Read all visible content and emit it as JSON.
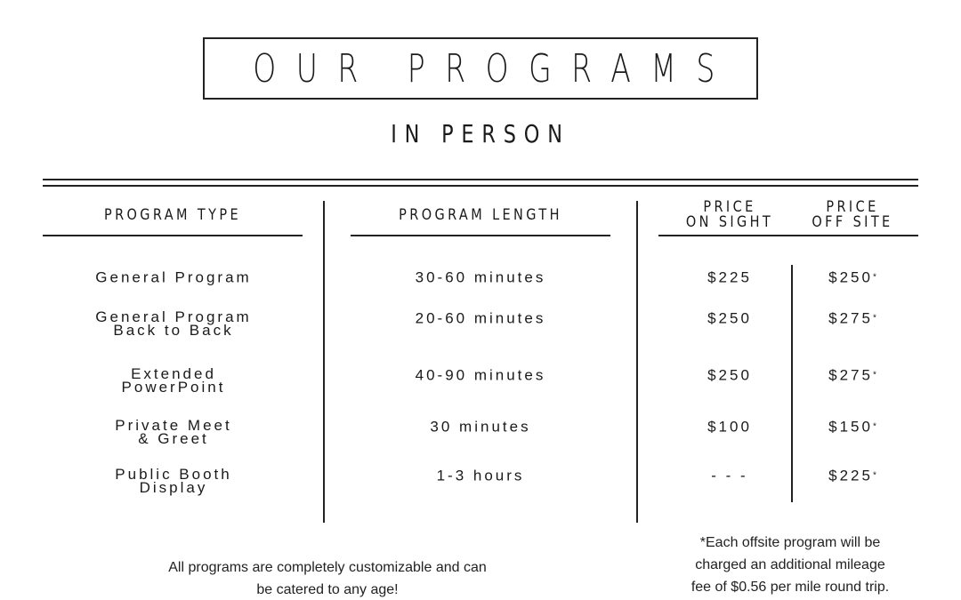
{
  "title": "OUR PROGRAMS",
  "subtitle": "IN PERSON",
  "headers": {
    "type": "PROGRAM TYPE",
    "length": "PROGRAM LENGTH",
    "onsite_1": "PRICE",
    "onsite_2": "ON SIGHT",
    "offsite_1": "PRICE",
    "offsite_2": "OFF SITE"
  },
  "rows": [
    {
      "type": [
        "General Program"
      ],
      "length": "30-60 minutes",
      "onsite": "$225",
      "offsite": "$250",
      "mark": "*"
    },
    {
      "type": [
        "General Program",
        "Back to Back"
      ],
      "length": "20-60 minutes",
      "onsite": "$250",
      "offsite": "$275",
      "mark": "*"
    },
    {
      "type": [
        "Extended",
        "PowerPoint"
      ],
      "length": "40-90 minutes",
      "onsite": "$250",
      "offsite": "$275",
      "mark": "*"
    },
    {
      "type": [
        "Private Meet",
        "& Greet"
      ],
      "length": "30 minutes",
      "onsite": "$100",
      "offsite": "$150",
      "mark": "*"
    },
    {
      "type": [
        "Public Booth",
        "Display"
      ],
      "length": "1-3 hours",
      "onsite": "- - -",
      "offsite": "$225",
      "mark": "*"
    }
  ],
  "footer_left": [
    "All programs are completely customizable and can",
    "be catered to any age!"
  ],
  "footer_right": [
    "*Each offsite program will be",
    "charged an additional mileage",
    "fee of $0.56 per mile round trip."
  ]
}
